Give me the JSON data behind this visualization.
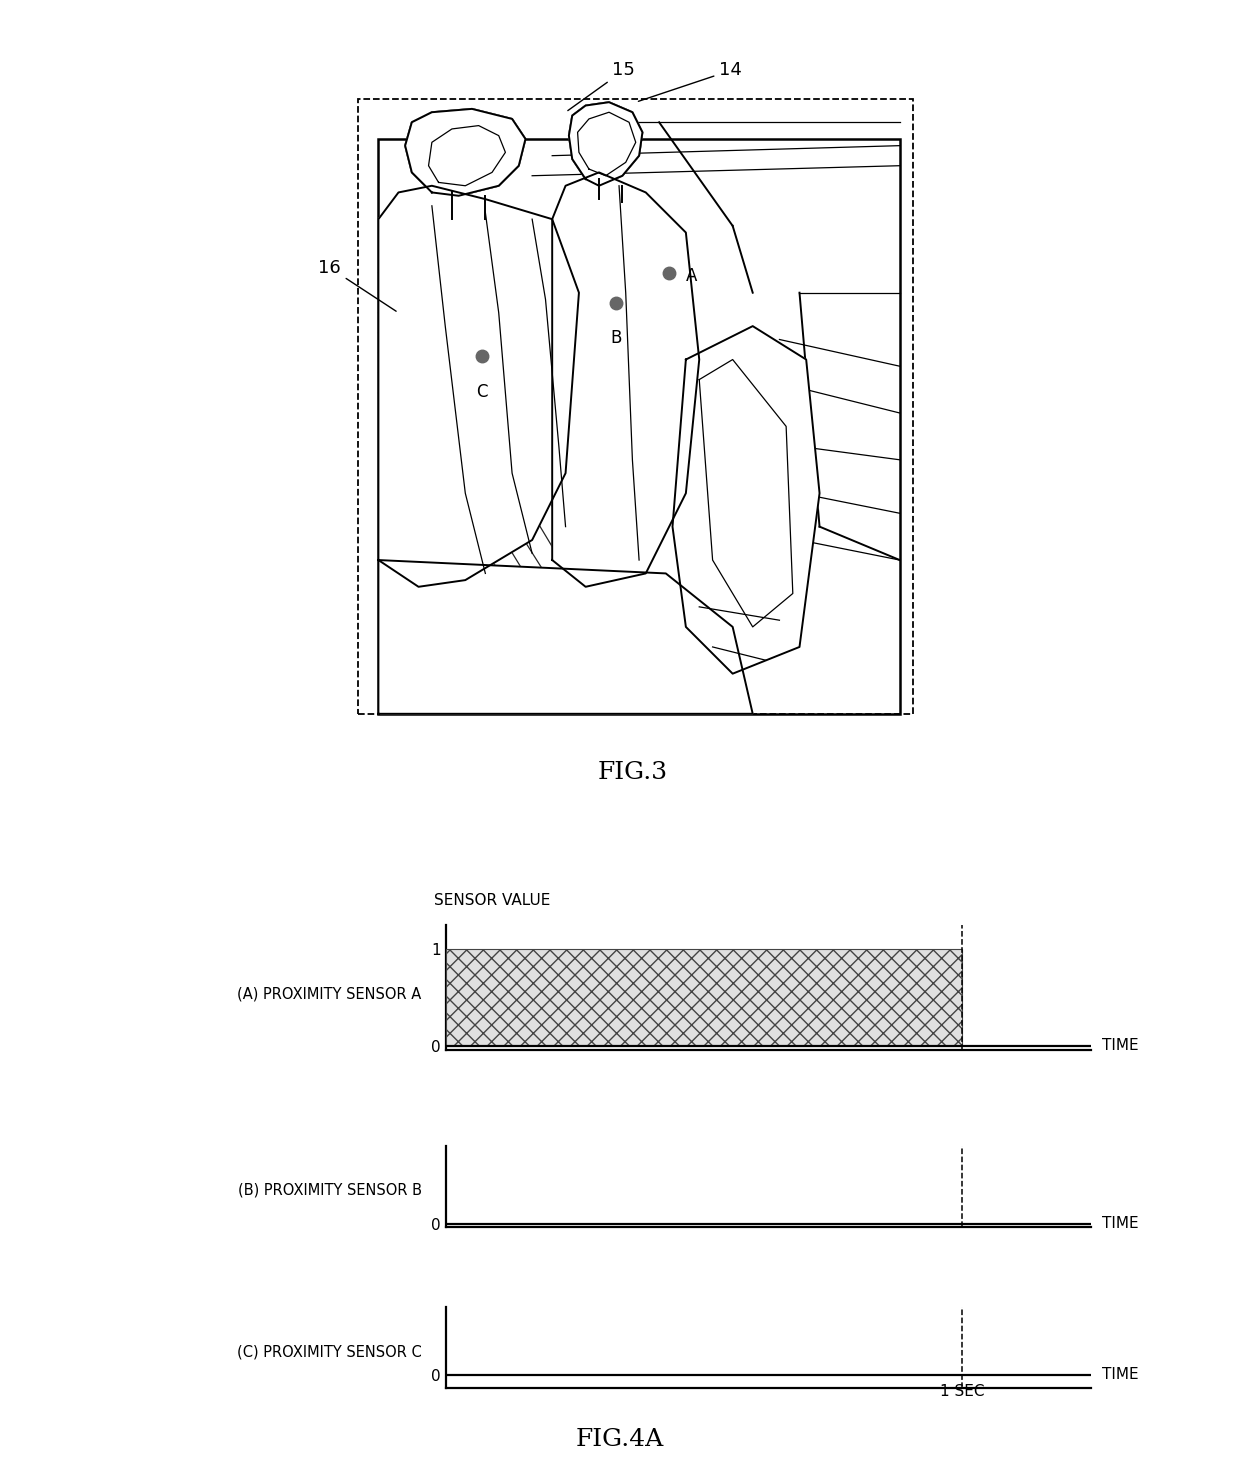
{
  "fig3_label": "FIG.3",
  "fig4a_label": "FIG.4A",
  "sensor_value_label": "SENSOR VALUE",
  "time_label": "TIME",
  "sensor_a_label": "(A) PROXIMITY SENSOR A",
  "sensor_b_label": "(B) PROXIMITY SENSOR B",
  "sensor_c_label": "(C) PROXIMITY SENSOR C",
  "one_sec_label": "1 SEC",
  "ref_14": "14",
  "ref_15": "15",
  "ref_16": "16",
  "ref_A": "A",
  "ref_B": "B",
  "ref_C": "C",
  "background_color": "#ffffff",
  "line_color": "#000000",
  "sensor_dot_color": "#666666",
  "fig_title_fontsize": 18,
  "label_fontsize": 13,
  "sensor_label_fontsize": 12
}
